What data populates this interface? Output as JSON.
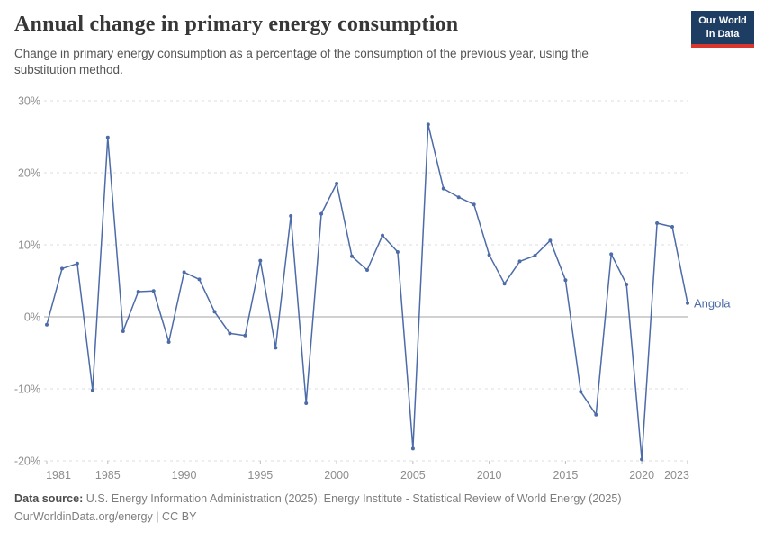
{
  "header": {
    "title": "Annual change in primary energy consumption",
    "subtitle": "Change in primary energy consumption as a percentage of the consumption of the previous year, using the substitution method.",
    "logo": {
      "line1": "Our World",
      "line2": "in Data"
    }
  },
  "chart_data": {
    "type": "line",
    "title": "Annual change in primary energy consumption",
    "entity_label": "Angola",
    "x": [
      1981,
      1982,
      1983,
      1984,
      1985,
      1986,
      1987,
      1988,
      1989,
      1990,
      1991,
      1992,
      1993,
      1994,
      1995,
      1996,
      1997,
      1998,
      1999,
      2000,
      2001,
      2002,
      2003,
      2004,
      2005,
      2006,
      2007,
      2008,
      2009,
      2010,
      2011,
      2012,
      2013,
      2014,
      2015,
      2016,
      2017,
      2018,
      2019,
      2020,
      2021,
      2022,
      2023
    ],
    "series": [
      {
        "name": "Angola",
        "color": "#4c6ba8",
        "values": [
          -1.1,
          6.7,
          7.4,
          -10.2,
          24.9,
          -2.0,
          3.5,
          3.6,
          -3.5,
          6.2,
          5.2,
          0.7,
          -2.3,
          -2.6,
          7.8,
          -4.3,
          14.0,
          -12.0,
          14.3,
          18.5,
          8.4,
          6.5,
          11.3,
          9.0,
          -18.3,
          26.7,
          17.8,
          16.6,
          15.6,
          8.6,
          4.6,
          7.7,
          8.5,
          10.6,
          5.1,
          -10.4,
          -13.6,
          8.7,
          4.5,
          -19.8,
          13.0,
          12.5,
          1.9
        ]
      }
    ],
    "ylim": [
      -20,
      30
    ],
    "yticks": [
      30,
      20,
      10,
      0,
      -10,
      -20
    ],
    "ytick_suffix": "%",
    "xticks": [
      1981,
      1985,
      1990,
      1995,
      2000,
      2005,
      2010,
      2015,
      2020,
      2023
    ],
    "grid": "horizontal-dashed, solid zero line",
    "legend_position": "end-of-line label"
  },
  "footer": {
    "datasource_label": "Data source:",
    "datasource_text": " U.S. Energy Information Administration (2025); Energy Institute - Statistical Review of World Energy (2025)",
    "license_line": "OurWorldinData.org/energy | CC BY"
  },
  "colors": {
    "line": "#4c6ba8",
    "grid": "#dcdcdc",
    "zero_line": "#a3a3a3",
    "tick": "#bbbbbb",
    "axis_text": "#8d8d8d",
    "logo_bg": "#1d3d63",
    "logo_bar": "#d7372e"
  }
}
